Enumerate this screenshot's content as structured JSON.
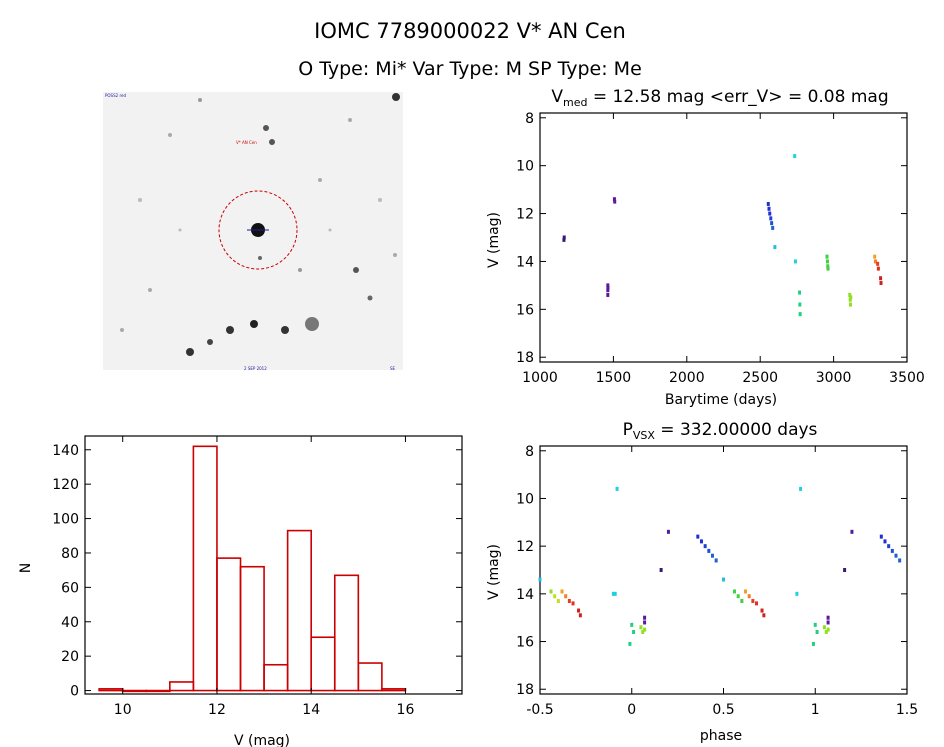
{
  "header": {
    "title": "IOMC 7789000022    V* AN Cen",
    "subtitle": "O Type: Mi*   Var Type: M   SP Type: Me"
  },
  "image_panel": {
    "name": "V* AN Cen",
    "labels": [
      "POSS2 red",
      "V* AN Cen",
      "2 SEP 2012",
      "SE"
    ],
    "circle_color": "#cc0000"
  },
  "chart_data": [
    {
      "id": "lightcurve",
      "type": "scatter",
      "title_prefix": "V",
      "title_sub": "med",
      "title_rest": " = 12.58 mag <err_V> = 0.08 mag",
      "xlabel": "Barytime (days)",
      "ylabel": "V (mag)",
      "xlim": [
        1000,
        3500
      ],
      "ylim": [
        18.2,
        7.8
      ],
      "xticks": [
        1000,
        1500,
        2000,
        2500,
        3000,
        3500
      ],
      "yticks": [
        8,
        10,
        12,
        14,
        16,
        18
      ],
      "points": [
        {
          "x": 1165,
          "y": 13.0,
          "color": "#3a1a70"
        },
        {
          "x": 1163,
          "y": 13.1,
          "color": "#3a1a70"
        },
        {
          "x": 1462,
          "y": 15.0,
          "color": "#5a1a9a"
        },
        {
          "x": 1462,
          "y": 15.2,
          "color": "#5a1a9a"
        },
        {
          "x": 1462,
          "y": 15.4,
          "color": "#5a1a9a"
        },
        {
          "x": 1463,
          "y": 15.1,
          "color": "#5a1a9a"
        },
        {
          "x": 1507,
          "y": 11.4,
          "color": "#5a1a9a"
        },
        {
          "x": 1509,
          "y": 11.5,
          "color": "#5a1a9a"
        },
        {
          "x": 2555,
          "y": 11.6,
          "color": "#2030d0"
        },
        {
          "x": 2560,
          "y": 11.8,
          "color": "#2030d0"
        },
        {
          "x": 2565,
          "y": 12.0,
          "color": "#2030d0"
        },
        {
          "x": 2572,
          "y": 12.2,
          "color": "#2040d0"
        },
        {
          "x": 2578,
          "y": 12.4,
          "color": "#2050d0"
        },
        {
          "x": 2585,
          "y": 12.6,
          "color": "#2060d0"
        },
        {
          "x": 2600,
          "y": 13.4,
          "color": "#20c0e0"
        },
        {
          "x": 2735,
          "y": 9.6,
          "color": "#20d0e0"
        },
        {
          "x": 2740,
          "y": 14.0,
          "color": "#20d0e0"
        },
        {
          "x": 2768,
          "y": 15.3,
          "color": "#20d080"
        },
        {
          "x": 2770,
          "y": 15.8,
          "color": "#20d080"
        },
        {
          "x": 2772,
          "y": 16.2,
          "color": "#20d080"
        },
        {
          "x": 2955,
          "y": 13.8,
          "color": "#40d040"
        },
        {
          "x": 2958,
          "y": 14.0,
          "color": "#40d040"
        },
        {
          "x": 2960,
          "y": 14.2,
          "color": "#40d040"
        },
        {
          "x": 2962,
          "y": 14.3,
          "color": "#40d040"
        },
        {
          "x": 3110,
          "y": 15.4,
          "color": "#90e020"
        },
        {
          "x": 3113,
          "y": 15.6,
          "color": "#90e020"
        },
        {
          "x": 3115,
          "y": 15.8,
          "color": "#90e020"
        },
        {
          "x": 3117,
          "y": 15.5,
          "color": "#90e020"
        },
        {
          "x": 3280,
          "y": 13.8,
          "color": "#f0a020"
        },
        {
          "x": 3285,
          "y": 14.0,
          "color": "#f08020"
        },
        {
          "x": 3300,
          "y": 14.1,
          "color": "#e04020"
        },
        {
          "x": 3305,
          "y": 14.3,
          "color": "#e03020"
        },
        {
          "x": 3320,
          "y": 14.7,
          "color": "#d02020"
        },
        {
          "x": 3323,
          "y": 14.9,
          "color": "#d02020"
        }
      ]
    },
    {
      "id": "histogram",
      "type": "bar",
      "xlabel": "V (mag)",
      "ylabel": "N",
      "xlim": [
        9.2,
        17.2
      ],
      "ylim": [
        -2,
        148
      ],
      "xticks": [
        10,
        12,
        14,
        16
      ],
      "yticks": [
        0,
        20,
        40,
        60,
        80,
        100,
        120,
        140
      ],
      "bin_width": 0.5,
      "bins": [
        {
          "left": 9.5,
          "count": 1
        },
        {
          "left": 10.0,
          "count": 0
        },
        {
          "left": 10.5,
          "count": 0
        },
        {
          "left": 11.0,
          "count": 5
        },
        {
          "left": 11.5,
          "count": 142
        },
        {
          "left": 12.0,
          "count": 77
        },
        {
          "left": 12.5,
          "count": 72
        },
        {
          "left": 13.0,
          "count": 15
        },
        {
          "left": 13.5,
          "count": 93
        },
        {
          "left": 14.0,
          "count": 31
        },
        {
          "left": 14.5,
          "count": 67
        },
        {
          "left": 15.0,
          "count": 16
        },
        {
          "left": 15.5,
          "count": 1
        }
      ],
      "color": "#cc0000"
    },
    {
      "id": "phased",
      "type": "scatter",
      "title_prefix": "P",
      "title_sub": "VSX",
      "title_rest": " = 332.00000 days",
      "xlabel": "phase",
      "ylabel": "V (mag)",
      "xlim": [
        -0.5,
        1.5
      ],
      "ylim": [
        18.2,
        7.8
      ],
      "xticks": [
        -0.5,
        0.0,
        0.5,
        1.0,
        1.5
      ],
      "yticks": [
        8,
        10,
        12,
        14,
        16,
        18
      ],
      "points": [
        {
          "x": -0.5,
          "y": 13.4,
          "color": "#20c0e0"
        },
        {
          "x": -0.44,
          "y": 13.9,
          "color": "#90e020"
        },
        {
          "x": -0.42,
          "y": 14.1,
          "color": "#c0e020"
        },
        {
          "x": -0.4,
          "y": 14.3,
          "color": "#c0e020"
        },
        {
          "x": -0.38,
          "y": 13.9,
          "color": "#f0a020"
        },
        {
          "x": -0.36,
          "y": 14.1,
          "color": "#f08020"
        },
        {
          "x": -0.34,
          "y": 14.3,
          "color": "#e04020"
        },
        {
          "x": -0.32,
          "y": 14.4,
          "color": "#e03020"
        },
        {
          "x": -0.29,
          "y": 14.7,
          "color": "#d02020"
        },
        {
          "x": -0.28,
          "y": 14.9,
          "color": "#d02020"
        },
        {
          "x": -0.08,
          "y": 9.6,
          "color": "#20d0e0"
        },
        {
          "x": -0.09,
          "y": 14.0,
          "color": "#20d0e0"
        },
        {
          "x": -0.1,
          "y": 14.0,
          "color": "#20d0e0"
        },
        {
          "x": 0.0,
          "y": 15.3,
          "color": "#20d080"
        },
        {
          "x": 0.01,
          "y": 15.6,
          "color": "#20d080"
        },
        {
          "x": -0.01,
          "y": 16.1,
          "color": "#20d080"
        },
        {
          "x": 0.05,
          "y": 15.4,
          "color": "#90e020"
        },
        {
          "x": 0.06,
          "y": 15.6,
          "color": "#90e020"
        },
        {
          "x": 0.07,
          "y": 15.5,
          "color": "#90e020"
        },
        {
          "x": 0.07,
          "y": 15.0,
          "color": "#5a1a9a"
        },
        {
          "x": 0.07,
          "y": 15.2,
          "color": "#5a1a9a"
        },
        {
          "x": 0.16,
          "y": 13.0,
          "color": "#3a1a70"
        },
        {
          "x": 0.2,
          "y": 11.4,
          "color": "#5a1a9a"
        },
        {
          "x": 0.36,
          "y": 11.6,
          "color": "#2030d0"
        },
        {
          "x": 0.38,
          "y": 11.8,
          "color": "#2030d0"
        },
        {
          "x": 0.4,
          "y": 12.0,
          "color": "#2040d0"
        },
        {
          "x": 0.42,
          "y": 12.2,
          "color": "#2050d0"
        },
        {
          "x": 0.44,
          "y": 12.4,
          "color": "#2060d0"
        },
        {
          "x": 0.46,
          "y": 12.6,
          "color": "#2060d0"
        },
        {
          "x": 0.5,
          "y": 13.4,
          "color": "#20c0e0"
        },
        {
          "x": 0.56,
          "y": 13.9,
          "color": "#40d040"
        },
        {
          "x": 0.58,
          "y": 14.1,
          "color": "#40d040"
        },
        {
          "x": 0.6,
          "y": 14.3,
          "color": "#40d040"
        },
        {
          "x": 0.62,
          "y": 13.9,
          "color": "#f0a020"
        },
        {
          "x": 0.64,
          "y": 14.1,
          "color": "#f08020"
        },
        {
          "x": 0.66,
          "y": 14.3,
          "color": "#e04020"
        },
        {
          "x": 0.68,
          "y": 14.4,
          "color": "#e03020"
        },
        {
          "x": 0.71,
          "y": 14.7,
          "color": "#d02020"
        },
        {
          "x": 0.72,
          "y": 14.9,
          "color": "#d02020"
        },
        {
          "x": 0.92,
          "y": 9.6,
          "color": "#20d0e0"
        },
        {
          "x": 0.9,
          "y": 14.0,
          "color": "#20d0e0"
        },
        {
          "x": 1.0,
          "y": 15.3,
          "color": "#20d080"
        },
        {
          "x": 1.01,
          "y": 15.6,
          "color": "#20d080"
        },
        {
          "x": 0.99,
          "y": 16.1,
          "color": "#20d080"
        },
        {
          "x": 1.05,
          "y": 15.4,
          "color": "#90e020"
        },
        {
          "x": 1.06,
          "y": 15.6,
          "color": "#90e020"
        },
        {
          "x": 1.07,
          "y": 15.5,
          "color": "#90e020"
        },
        {
          "x": 1.07,
          "y": 15.0,
          "color": "#5a1a9a"
        },
        {
          "x": 1.07,
          "y": 15.2,
          "color": "#5a1a9a"
        },
        {
          "x": 1.16,
          "y": 13.0,
          "color": "#3a1a70"
        },
        {
          "x": 1.2,
          "y": 11.4,
          "color": "#5a1a9a"
        },
        {
          "x": 1.36,
          "y": 11.6,
          "color": "#2030d0"
        },
        {
          "x": 1.38,
          "y": 11.8,
          "color": "#2030d0"
        },
        {
          "x": 1.4,
          "y": 12.0,
          "color": "#2040d0"
        },
        {
          "x": 1.42,
          "y": 12.2,
          "color": "#2050d0"
        },
        {
          "x": 1.44,
          "y": 12.4,
          "color": "#2060d0"
        },
        {
          "x": 1.46,
          "y": 12.6,
          "color": "#2060d0"
        }
      ]
    }
  ]
}
